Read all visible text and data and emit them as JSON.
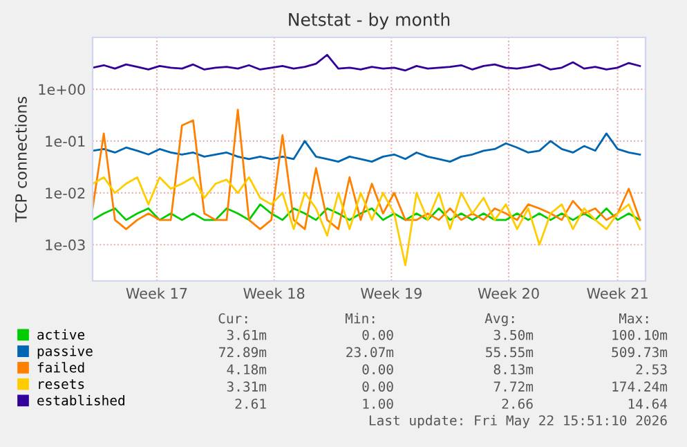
{
  "chart_data": {
    "type": "line",
    "title": "Netstat - by month",
    "ylabel": "TCP connections",
    "log": true,
    "grid": true,
    "legend": "bottom",
    "ylim": [
      0.0002,
      10
    ],
    "yticks": [
      {
        "value": 0.001,
        "label": "1e-03"
      },
      {
        "value": 0.01,
        "label": "1e-02"
      },
      {
        "value": 0.1,
        "label": "1e-01"
      },
      {
        "value": 1,
        "label": "1e+00"
      }
    ],
    "xlim": [
      "2026-04-19T16:00",
      "2026-05-22T16:00"
    ],
    "xticks": [
      {
        "value": "2026-04-23T12:00",
        "label": "Week 17"
      },
      {
        "value": "2026-04-30T12:00",
        "label": "Week 18"
      },
      {
        "value": "2026-05-07T12:00",
        "label": "Week 19"
      },
      {
        "value": "2026-05-14T12:00",
        "label": "Week 20"
      },
      {
        "value": "2026-05-21T00:00",
        "label": "Week 21"
      }
    ],
    "x": [
      "2026-04-19T16:00",
      "2026-04-20T08:00",
      "2026-04-21T00:00",
      "2026-04-21T16:00",
      "2026-04-22T08:00",
      "2026-04-23T00:00",
      "2026-04-23T16:00",
      "2026-04-24T08:00",
      "2026-04-25T00:00",
      "2026-04-25T16:00",
      "2026-04-26T08:00",
      "2026-04-27T00:00",
      "2026-04-27T16:00",
      "2026-04-28T08:00",
      "2026-04-29T00:00",
      "2026-04-29T16:00",
      "2026-04-30T08:00",
      "2026-05-01T00:00",
      "2026-05-01T16:00",
      "2026-05-02T08:00",
      "2026-05-03T00:00",
      "2026-05-03T16:00",
      "2026-05-04T08:00",
      "2026-05-05T00:00",
      "2026-05-05T16:00",
      "2026-05-06T08:00",
      "2026-05-07T00:00",
      "2026-05-07T16:00",
      "2026-05-08T08:00",
      "2026-05-09T00:00",
      "2026-05-09T16:00",
      "2026-05-10T08:00",
      "2026-05-11T00:00",
      "2026-05-11T16:00",
      "2026-05-12T08:00",
      "2026-05-13T00:00",
      "2026-05-13T16:00",
      "2026-05-14T08:00",
      "2026-05-15T00:00",
      "2026-05-15T16:00",
      "2026-05-16T08:00",
      "2026-05-17T00:00",
      "2026-05-17T16:00",
      "2026-05-18T08:00",
      "2026-05-19T00:00",
      "2026-05-19T16:00",
      "2026-05-20T08:00",
      "2026-05-21T00:00",
      "2026-05-21T16:00",
      "2026-05-22T08:00"
    ],
    "series": [
      {
        "name": "active",
        "color": "#00cc00",
        "values": [
          0.003,
          0.004,
          0.005,
          0.003,
          0.004,
          0.005,
          0.003,
          0.004,
          0.003,
          0.004,
          0.003,
          0.003,
          0.005,
          0.004,
          0.003,
          0.006,
          0.004,
          0.003,
          0.005,
          0.004,
          0.003,
          0.005,
          0.004,
          0.003,
          0.004,
          0.005,
          0.003,
          0.004,
          0.003,
          0.004,
          0.003,
          0.005,
          0.003,
          0.004,
          0.003,
          0.004,
          0.003,
          0.003,
          0.004,
          0.003,
          0.004,
          0.003,
          0.004,
          0.003,
          0.004,
          0.003,
          0.005,
          0.003,
          0.004,
          0.003
        ]
      },
      {
        "name": "passive",
        "color": "#0066b3",
        "values": [
          0.065,
          0.07,
          0.06,
          0.075,
          0.065,
          0.055,
          0.07,
          0.06,
          0.055,
          0.06,
          0.05,
          0.055,
          0.06,
          0.05,
          0.045,
          0.05,
          0.045,
          0.05,
          0.045,
          0.1,
          0.05,
          0.045,
          0.04,
          0.05,
          0.045,
          0.04,
          0.05,
          0.055,
          0.045,
          0.06,
          0.05,
          0.045,
          0.04,
          0.05,
          0.055,
          0.065,
          0.07,
          0.09,
          0.075,
          0.06,
          0.065,
          0.1,
          0.07,
          0.06,
          0.08,
          0.065,
          0.14,
          0.07,
          0.06,
          0.055
        ]
      },
      {
        "name": "failed",
        "color": "#ff8000",
        "values": [
          0.005,
          0.14,
          0.003,
          0.002,
          0.003,
          0.004,
          0.003,
          0.003,
          0.2,
          0.25,
          0.004,
          0.003,
          0.003,
          0.4,
          0.003,
          0.002,
          0.003,
          0.13,
          0.003,
          0.002,
          0.03,
          0.003,
          0.002,
          0.02,
          0.003,
          0.015,
          0.004,
          0.01,
          0.003,
          0.003,
          0.004,
          0.003,
          0.005,
          0.003,
          0.004,
          0.003,
          0.005,
          0.004,
          0.003,
          0.006,
          0.005,
          0.004,
          0.003,
          0.007,
          0.004,
          0.005,
          0.003,
          0.004,
          0.012,
          0.003
        ]
      },
      {
        "name": "resets",
        "color": "#ffcc00",
        "values": [
          0.015,
          0.02,
          0.01,
          0.015,
          0.02,
          0.006,
          0.02,
          0.012,
          0.015,
          0.02,
          0.008,
          0.015,
          0.018,
          0.01,
          0.02,
          0.008,
          0.006,
          0.01,
          0.002,
          0.01,
          0.005,
          0.0015,
          0.01,
          0.002,
          0.01,
          0.003,
          0.01,
          0.004,
          0.0004,
          0.01,
          0.003,
          0.01,
          0.002,
          0.01,
          0.004,
          0.008,
          0.003,
          0.006,
          0.002,
          0.005,
          0.001,
          0.004,
          0.006,
          0.002,
          0.005,
          0.003,
          0.002,
          0.004,
          0.006,
          0.002
        ]
      },
      {
        "name": "established",
        "color": "#330099",
        "values": [
          2.6,
          2.9,
          2.5,
          3.0,
          2.7,
          2.4,
          2.8,
          2.6,
          2.5,
          3.0,
          2.4,
          2.6,
          2.7,
          2.5,
          2.9,
          2.4,
          2.6,
          2.8,
          2.5,
          2.7,
          3.1,
          4.6,
          2.5,
          2.6,
          2.4,
          2.7,
          2.5,
          2.6,
          2.3,
          2.8,
          2.5,
          2.6,
          2.7,
          2.9,
          2.4,
          2.8,
          3.0,
          2.6,
          2.5,
          2.7,
          3.0,
          2.4,
          2.6,
          3.3,
          2.5,
          2.7,
          2.4,
          2.6,
          3.2,
          2.8
        ]
      }
    ],
    "annotations": [
      "Cur:",
      "Min:",
      "Avg:",
      "Max:",
      "3.61m",
      "0.00",
      "3.50m",
      "100.10m",
      "72.89m",
      "23.07m",
      "55.55m",
      "509.73m",
      "4.18m",
      "0.00",
      "8.13m",
      "2.53",
      "3.31m",
      "0.00",
      "7.72m",
      "174.24m",
      "2.61",
      "1.00",
      "2.66",
      "14.64",
      "Last update: Fri May 22 15:51:10 2026"
    ]
  }
}
